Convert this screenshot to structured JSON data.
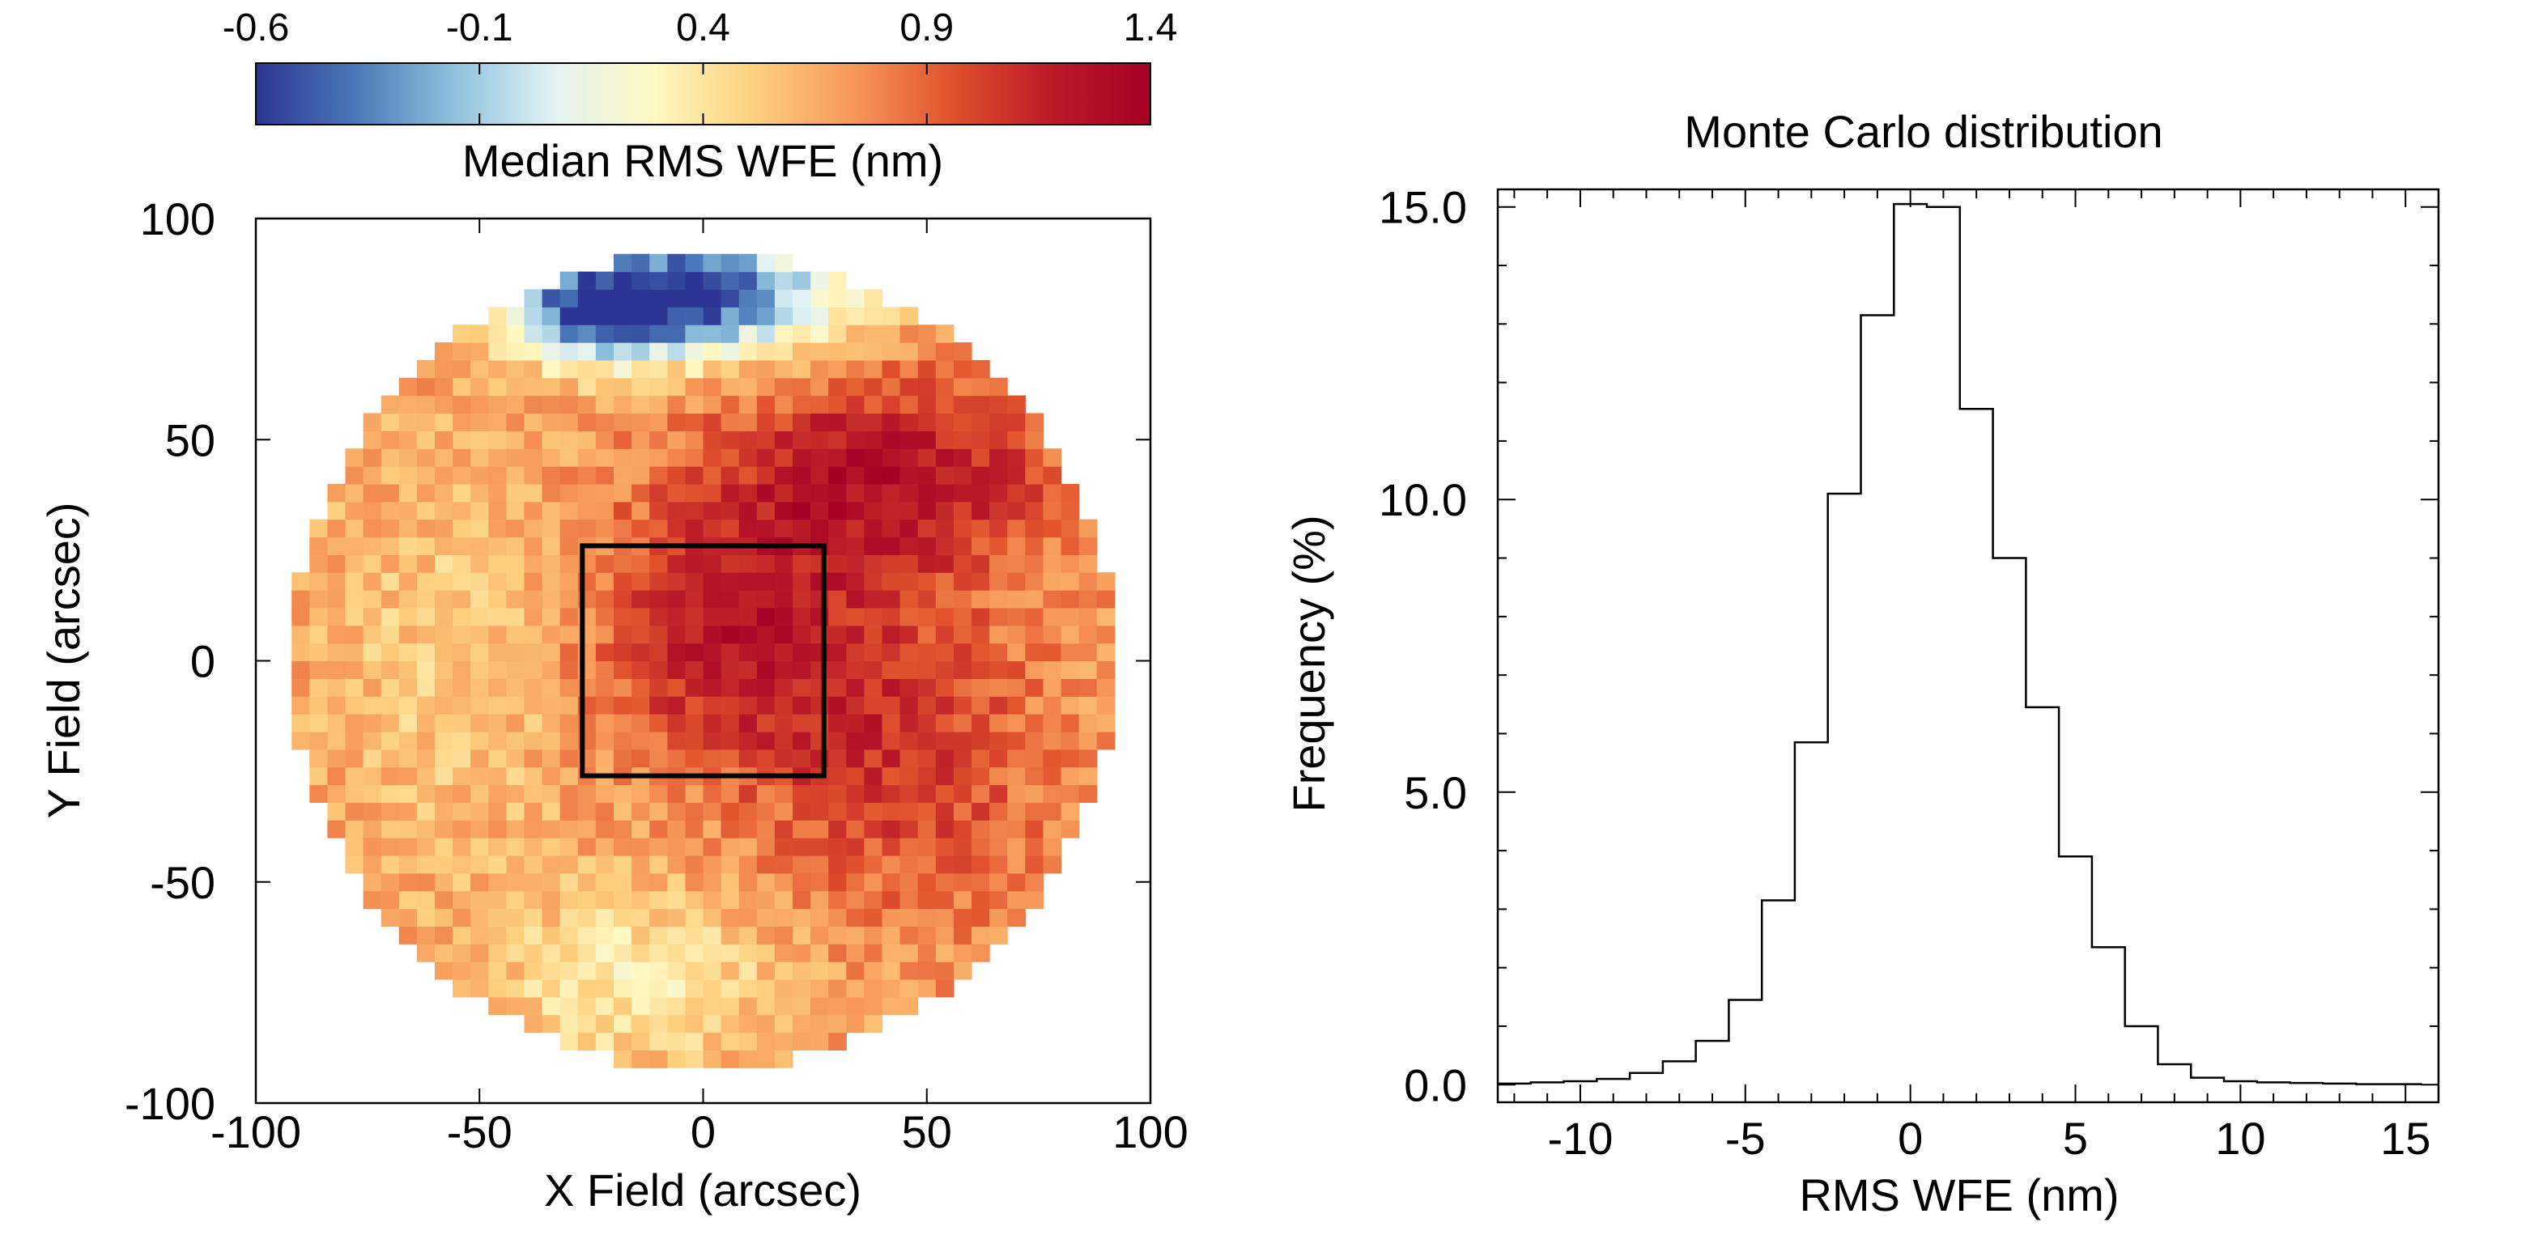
{
  "chart_data": [
    {
      "type": "heatmap",
      "title": "",
      "xlabel": "X Field (arcsec)",
      "ylabel": "Y Field (arcsec)",
      "xlim": [
        -100,
        100
      ],
      "ylim": [
        -100,
        100
      ],
      "xticks": [
        -100,
        -50,
        0,
        50,
        100
      ],
      "yticks": [
        -100,
        -50,
        0,
        50,
        100
      ],
      "field_radius": 92,
      "cell_size": 4,
      "colormap": [
        "#2c3593",
        "#4a78b8",
        "#8fc2de",
        "#e2f2f3",
        "#fff8c2",
        "#fdd07e",
        "#f79959",
        "#e1512d",
        "#ba1b28",
        "#a50026"
      ],
      "colorbar": {
        "label": "Median RMS WFE (nm)",
        "range": [
          -0.6,
          1.4
        ],
        "ticks": [
          -0.6,
          -0.1,
          0.4,
          0.9,
          1.4
        ]
      },
      "regions": [
        {
          "name": "top blue region",
          "x": -5,
          "y": 83,
          "sx": 25,
          "sy": 10,
          "value": -1.3
        },
        {
          "name": "top-left dark blue",
          "x": -25,
          "y": 78,
          "sx": 12,
          "sy": 7,
          "value": -0.6
        },
        {
          "name": "upper-right red band",
          "x": 40,
          "y": 42,
          "sx": 28,
          "sy": 16,
          "value": 0.55
        },
        {
          "name": "central red core",
          "x": 5,
          "y": 5,
          "sx": 22,
          "sy": 20,
          "value": 0.5
        },
        {
          "name": "right red band",
          "x": 45,
          "y": -22,
          "sx": 22,
          "sy": 25,
          "value": 0.35
        },
        {
          "name": "left pale band",
          "x": -55,
          "y": 0,
          "sx": 20,
          "sy": 30,
          "value": -0.2
        },
        {
          "name": "bottom pale region",
          "x": -15,
          "y": -72,
          "sx": 22,
          "sy": 14,
          "value": -0.35
        }
      ],
      "base_value": 0.7,
      "box": {
        "x": [
          -27,
          27
        ],
        "y": [
          -26,
          26
        ]
      }
    },
    {
      "type": "bar",
      "title": "Monte Carlo distribution",
      "xlabel": "RMS WFE (nm)",
      "ylabel": "Frequency (%)",
      "xlim": [
        -12.5,
        16
      ],
      "ylim": [
        -0.3,
        15.3
      ],
      "xticks": [
        -10,
        -5,
        0,
        5,
        10,
        15
      ],
      "yticks": [
        0.0,
        5.0,
        10.0,
        15.0
      ],
      "bin_edges": [
        -12.5,
        -11.5,
        -10.5,
        -9.5,
        -8.5,
        -7.5,
        -6.5,
        -5.5,
        -4.5,
        -3.5,
        -2.5,
        -1.5,
        -0.5,
        0.5,
        1.5,
        2.5,
        3.5,
        4.5,
        5.5,
        6.5,
        7.5,
        8.5,
        9.5,
        10.5,
        11.5,
        12.5,
        13.5,
        14.5,
        15.5
      ],
      "values": [
        0.02,
        0.04,
        0.06,
        0.1,
        0.2,
        0.4,
        0.75,
        1.45,
        3.15,
        5.85,
        10.1,
        13.15,
        15.05,
        15.0,
        11.55,
        9.0,
        6.45,
        3.9,
        2.35,
        1.0,
        0.35,
        0.12,
        0.06,
        0.04,
        0.03,
        0.02,
        0.01,
        0.01
      ]
    }
  ]
}
